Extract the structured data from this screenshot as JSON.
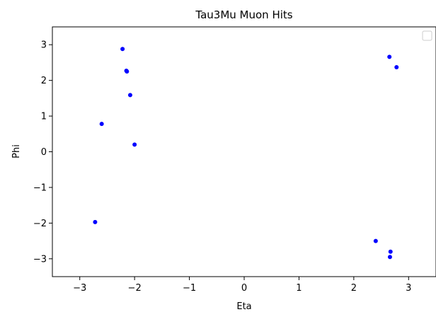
{
  "chart_data": {
    "type": "scatter",
    "title": "Tau3Mu Muon Hits",
    "xlabel": "Eta",
    "ylabel": "Phi",
    "xlim": [
      -3.5,
      3.5
    ],
    "ylim": [
      -3.5,
      3.5
    ],
    "xticks": [
      -3,
      -2,
      -1,
      0,
      1,
      2,
      3
    ],
    "yticks": [
      -3,
      -2,
      -1,
      0,
      1,
      2,
      3
    ],
    "xtick_labels": [
      "−3",
      "−2",
      "−1",
      "0",
      "1",
      "2",
      "3"
    ],
    "ytick_labels": [
      "−3",
      "−2",
      "−1",
      "0",
      "1",
      "2",
      "3"
    ],
    "grid": false,
    "legend": "top-right, empty",
    "marker_color": "#0000ff",
    "points": [
      {
        "x": -2.22,
        "y": 2.88
      },
      {
        "x": -2.15,
        "y": 2.27
      },
      {
        "x": -2.14,
        "y": 2.25
      },
      {
        "x": -2.08,
        "y": 1.59
      },
      {
        "x": -2.6,
        "y": 0.78
      },
      {
        "x": -2.0,
        "y": 0.2
      },
      {
        "x": -2.72,
        "y": -1.97
      },
      {
        "x": 2.65,
        "y": 2.66
      },
      {
        "x": 2.78,
        "y": 2.37
      },
      {
        "x": 2.4,
        "y": -2.5
      },
      {
        "x": 2.67,
        "y": -2.8
      },
      {
        "x": 2.66,
        "y": -2.95
      }
    ]
  }
}
